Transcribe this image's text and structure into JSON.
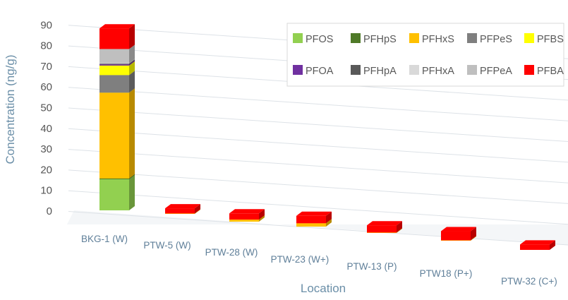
{
  "chart_data": {
    "type": "bar",
    "stacked": true,
    "three_d": true,
    "categories": [
      "BKG-1 (W)",
      "PTW-5 (W)",
      "PTW-28 (W)",
      "PTW-23 (W+)",
      "PTW-13 (P)",
      "PTW18 (P+)",
      "PTW-32 (C+)"
    ],
    "xlabel": "Location",
    "ylabel": "Concentration  (ng/g)",
    "ylim": [
      0,
      90
    ],
    "yticks": [
      0,
      10,
      20,
      30,
      40,
      50,
      60,
      70,
      80,
      90
    ],
    "grid": true,
    "legend_position": "top-right",
    "series": [
      {
        "name": "PFOS",
        "color": "#92d050",
        "values": [
          15,
          0,
          0,
          0,
          0,
          0,
          0
        ]
      },
      {
        "name": "PFHpS",
        "color": "#4f7a28",
        "values": [
          0.4,
          0,
          0,
          0,
          0,
          0,
          0
        ]
      },
      {
        "name": "PFHxS",
        "color": "#ffc000",
        "values": [
          41.5,
          0.2,
          1,
          1.6,
          0.2,
          0.2,
          0
        ]
      },
      {
        "name": "PFPeS",
        "color": "#7f7f7f",
        "values": [
          8.5,
          0,
          0,
          0,
          0,
          0,
          0
        ]
      },
      {
        "name": "PFBS",
        "color": "#ffff00",
        "values": [
          4.6,
          0,
          0,
          0,
          0,
          0,
          0
        ]
      },
      {
        "name": "PFOA",
        "color": "#7030a0",
        "values": [
          0.6,
          0,
          0,
          0,
          0,
          0,
          0
        ]
      },
      {
        "name": "PFHpA",
        "color": "#595959",
        "values": [
          0.3,
          0,
          0,
          0,
          0,
          0,
          0
        ]
      },
      {
        "name": "PFHxA",
        "color": "#d9d9d9",
        "values": [
          0.3,
          0,
          0,
          0,
          0,
          0,
          0
        ]
      },
      {
        "name": "PFPeA",
        "color": "#bfbfbf",
        "values": [
          6.8,
          0,
          0,
          0,
          0,
          0,
          0
        ]
      },
      {
        "name": "PFBA",
        "color": "#ff0000",
        "values": [
          10,
          2.5,
          3,
          3.6,
          3.5,
          4.4,
          2.6
        ]
      }
    ]
  }
}
